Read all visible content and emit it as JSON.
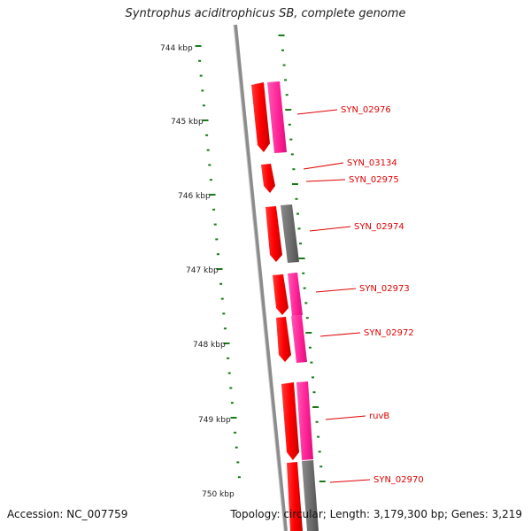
{
  "title": "Syntrophus aciditrophicus SB, complete genome",
  "footer": {
    "accession": "Accession: NC_007759",
    "genome_info": "Topology: circular; Length: 3,179,300 bp; Genes: 3,219"
  },
  "ticks": [
    "744 kbp",
    "745 kbp",
    "746 kbp",
    "747 kbp",
    "748 kbp",
    "749 kbp",
    "750 kbp"
  ],
  "genes": [
    "SYN_02976",
    "SYN_03134",
    "SYN_02975",
    "SYN_02974",
    "SYN_02973",
    "SYN_02972",
    "ruvB",
    "SYN_02970"
  ],
  "colors": {
    "cds": "#ff0000",
    "magenta_track": "#ff2d9b",
    "gray_track": "#6e6e6e",
    "backbone": "#8c8c8c",
    "tick": "#1a7a1a",
    "label": "#e00000"
  }
}
